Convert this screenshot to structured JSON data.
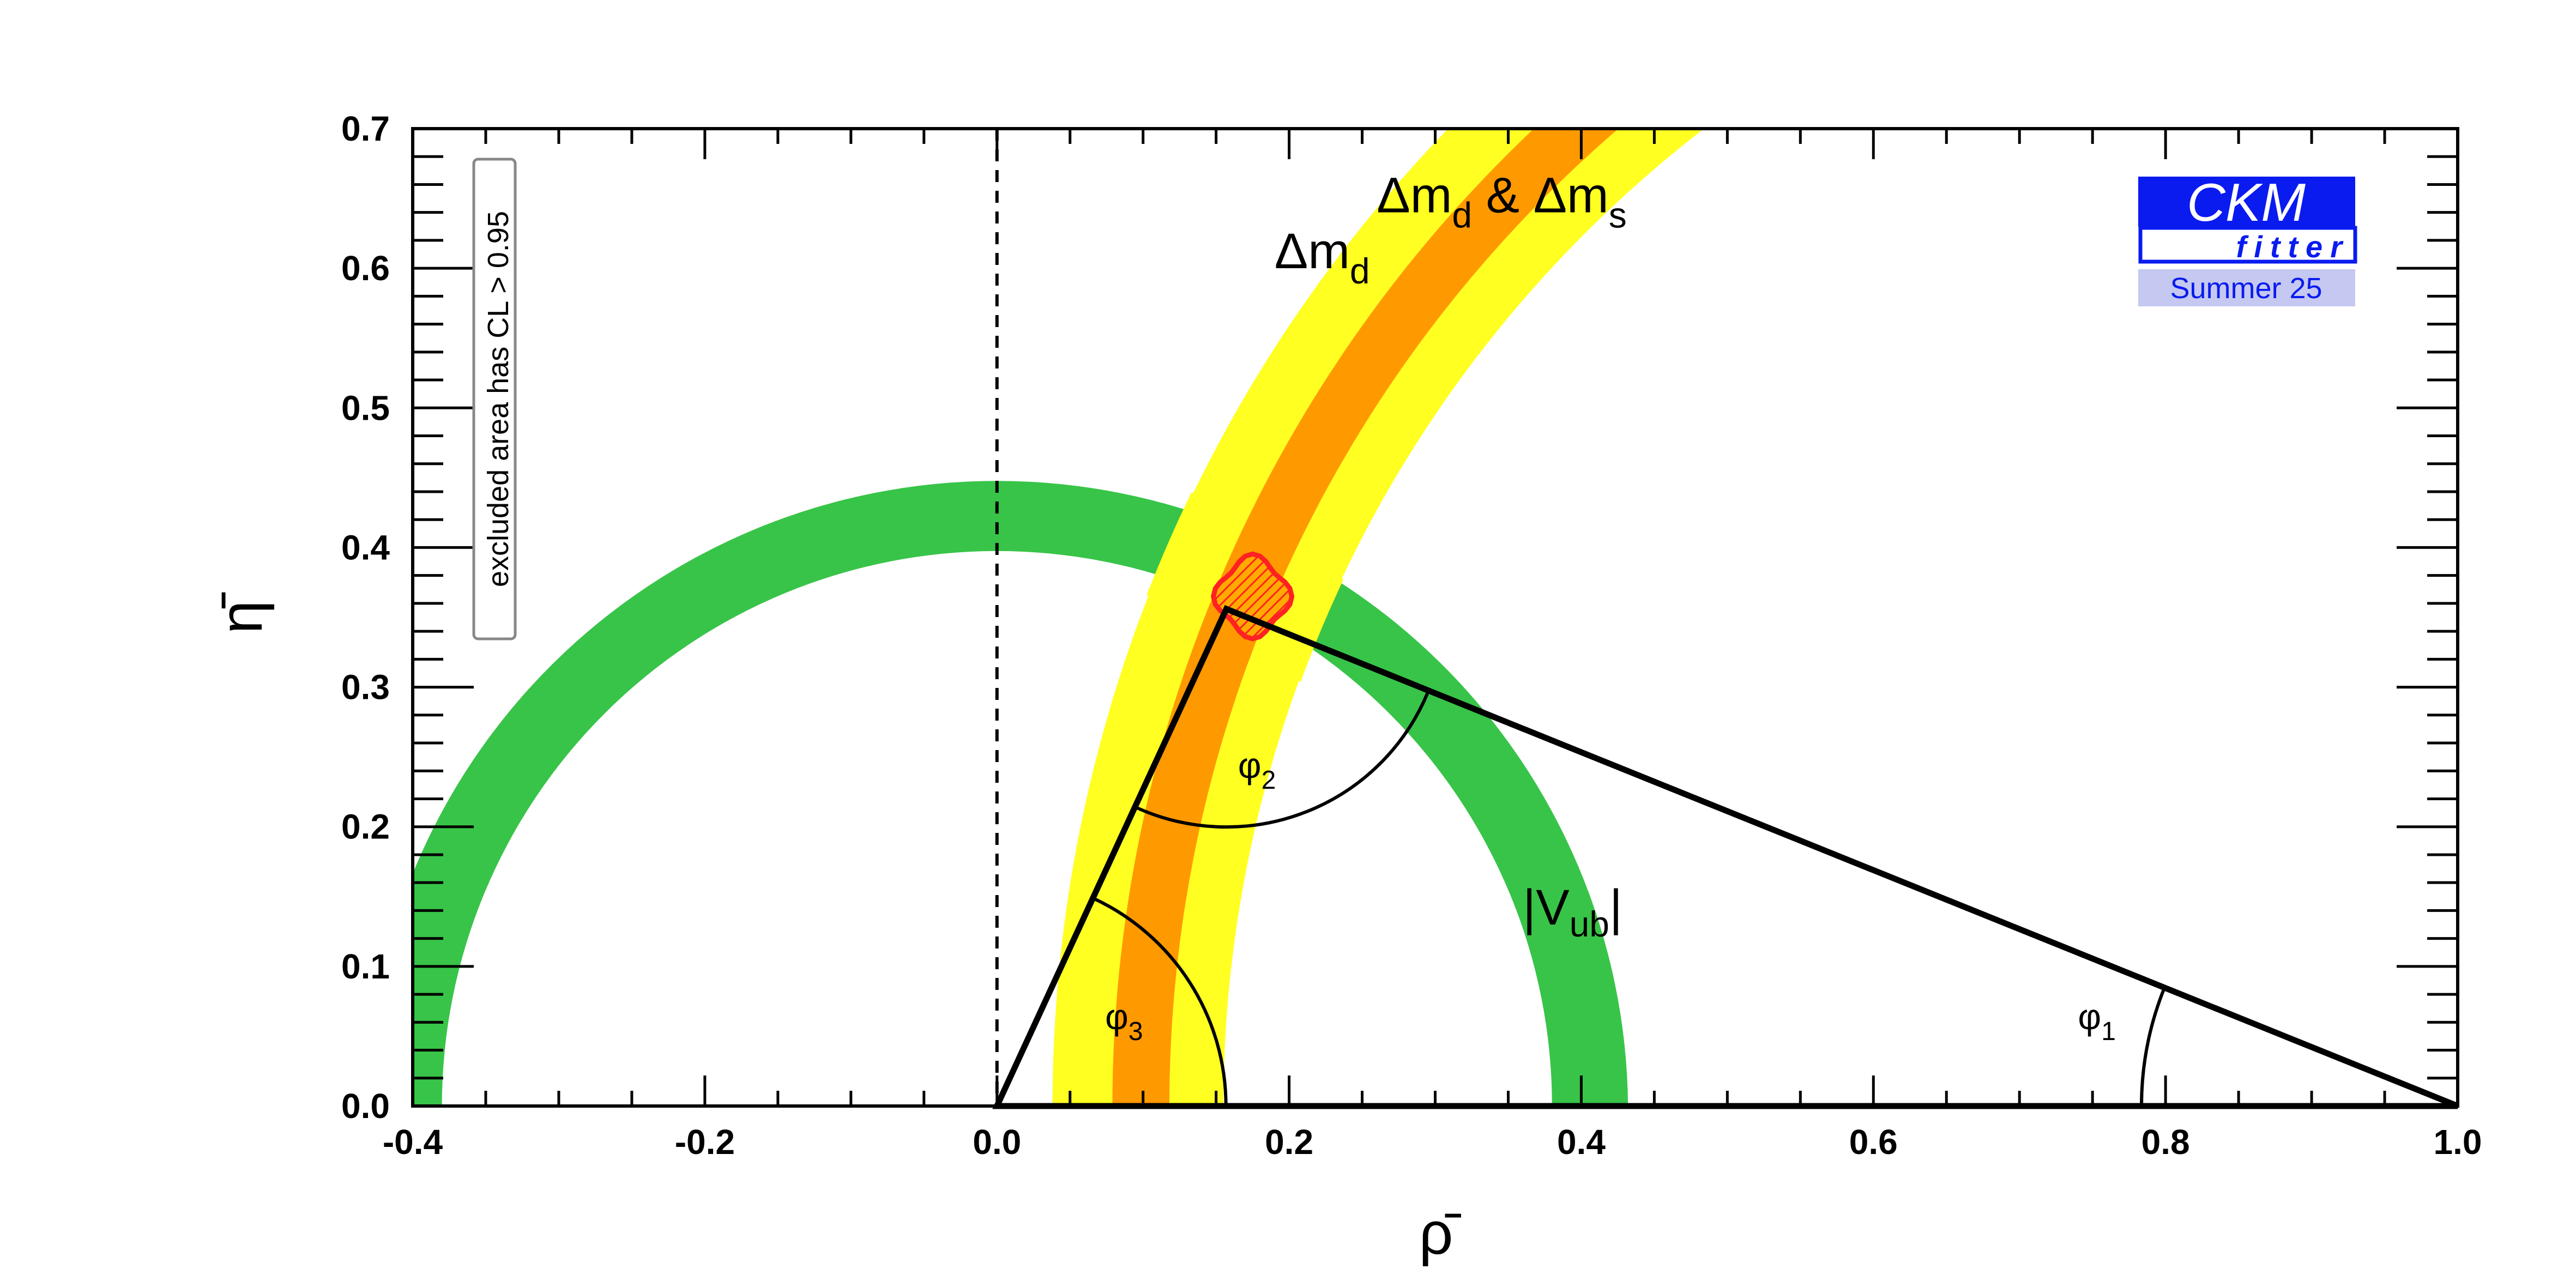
{
  "chart_data": {
    "type": "scatter",
    "subtype": "ckm-unitarity-triangle-constraints",
    "xlabel": "ρ̄",
    "ylabel": "η̄",
    "xlim": [
      -0.4,
      1.0
    ],
    "ylim": [
      0.0,
      0.7
    ],
    "xticks": [
      -0.4,
      -0.2,
      0.0,
      0.2,
      0.4,
      0.6,
      0.8,
      1.0
    ],
    "xtick_labels": [
      "-0.4",
      "-0.2",
      "0.0",
      "0.2",
      "0.4",
      "0.6",
      "0.8",
      "1.0"
    ],
    "yticks": [
      0.0,
      0.1,
      0.2,
      0.3,
      0.4,
      0.5,
      0.6,
      0.7
    ],
    "ytick_labels": [
      "0.0",
      "0.1",
      "0.2",
      "0.3",
      "0.4",
      "0.5",
      "0.6",
      "0.7"
    ],
    "grid": false,
    "constraints": {
      "vub": {
        "center": [
          0.0,
          0.0
        ],
        "r_inner": 0.38,
        "r_outer": 0.432,
        "color": "#38c448",
        "label_main": "|V",
        "label_sub": "ub",
        "label_end": "|",
        "label_at": [
          0.36,
          0.13
        ]
      },
      "dmd": {
        "center": [
          1.0,
          0.0
        ],
        "r_inner_95": 0.845,
        "r_outer_95": 0.962,
        "r_inner_68": 0.882,
        "r_outer_68": 0.921,
        "color_95": "#ffff22",
        "color_68": "#ff9900",
        "label_main": "Δm",
        "label_sub": "d",
        "label_at": [
          0.19,
          0.6
        ]
      },
      "dmd_dms_label": {
        "part1": "Δm",
        "sub1": "d",
        "part2": " & Δm",
        "sub2": "s",
        "label_at": [
          0.26,
          0.64
        ]
      }
    },
    "fit": {
      "apex": [
        0.157,
        0.356
      ],
      "region_center": [
        0.175,
        0.365
      ],
      "region_color": "#ff2222",
      "fill_color": "#ffaa00"
    },
    "triangle": [
      [
        0.0,
        0.0
      ],
      [
        1.0,
        0.0
      ],
      [
        0.157,
        0.356
      ]
    ],
    "angles": {
      "phi1": {
        "symbol": "φ",
        "sub": "1",
        "vertex": [
          1.0,
          0.0
        ],
        "label_at": [
          0.74,
          0.055
        ]
      },
      "phi2": {
        "symbol": "φ",
        "sub": "2",
        "vertex": [
          0.157,
          0.356
        ],
        "label_at": [
          0.165,
          0.235
        ]
      },
      "phi3": {
        "symbol": "φ",
        "sub": "3",
        "vertex": [
          0.0,
          0.0
        ],
        "label_at": [
          0.074,
          0.055
        ]
      }
    },
    "dashed_line_x": 0.0
  },
  "legend": {
    "excluded_note": "excluded area has CL > 0.95"
  },
  "logo": {
    "line1": "CKM",
    "line2": "fitter",
    "season": "Summer 25",
    "primary_color": "#0a1bf0",
    "season_bg": "#c5c8f0"
  }
}
